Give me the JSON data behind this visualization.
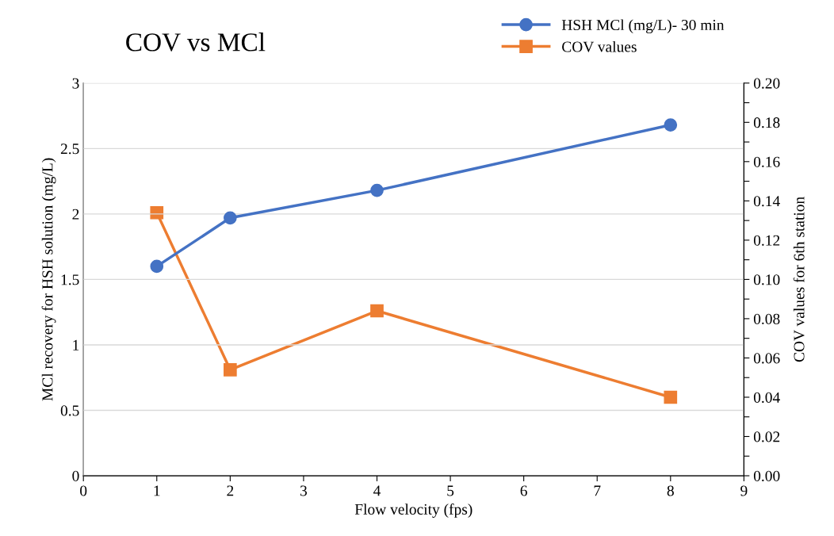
{
  "chart_data": {
    "type": "line",
    "title": "COV vs MCl",
    "xlabel": "Flow velocity (fps)",
    "ylabel": "MCl recovery for HSH solution (mg/L)",
    "y2label": "COV values for 6th station",
    "x": [
      1,
      2,
      4,
      8
    ],
    "series": [
      {
        "name": "HSH MCl (mg/L)- 30 min",
        "color": "#4472c4",
        "marker": "circle",
        "values": [
          1.6,
          1.97,
          2.18,
          2.68
        ]
      },
      {
        "name": "COV values",
        "color": "#ed7d31",
        "marker": "square",
        "axis": "y2",
        "values": [
          0.134,
          0.054,
          0.084,
          0.04
        ]
      }
    ],
    "xlim": [
      0,
      9
    ],
    "xticks": [
      0,
      1,
      2,
      3,
      4,
      5,
      6,
      7,
      8,
      9
    ],
    "ylim": [
      0,
      3
    ],
    "yticks": [
      0,
      0.5,
      1,
      1.5,
      2,
      2.5,
      3
    ],
    "y2lim": [
      0,
      0.2
    ],
    "y2ticks": [
      {
        "value": 0,
        "label": "0.00"
      },
      {
        "value": 0.01,
        "label": null
      },
      {
        "value": 0.02,
        "label": "0.02"
      },
      {
        "value": 0.03,
        "label": null
      },
      {
        "value": 0.04,
        "label": "0.04"
      },
      {
        "value": 0.05,
        "label": null
      },
      {
        "value": 0.06,
        "label": "0.06"
      },
      {
        "value": 0.07,
        "label": null
      },
      {
        "value": 0.08,
        "label": "0.08"
      },
      {
        "value": 0.09,
        "label": null
      },
      {
        "value": 0.1,
        "label": "0.10"
      },
      {
        "value": 0.11,
        "label": null
      },
      {
        "value": 0.12,
        "label": "0.12"
      },
      {
        "value": 0.13,
        "label": null
      },
      {
        "value": 0.14,
        "label": "0.14"
      },
      {
        "value": 0.15,
        "label": null
      },
      {
        "value": 0.16,
        "label": "0.16"
      },
      {
        "value": 0.17,
        "label": null
      },
      {
        "value": 0.18,
        "label": "0.18"
      },
      {
        "value": 0.19,
        "label": null
      },
      {
        "value": 0.2,
        "label": "0.20"
      }
    ],
    "grid": "y",
    "legend": "top right",
    "line_style": "solid"
  }
}
